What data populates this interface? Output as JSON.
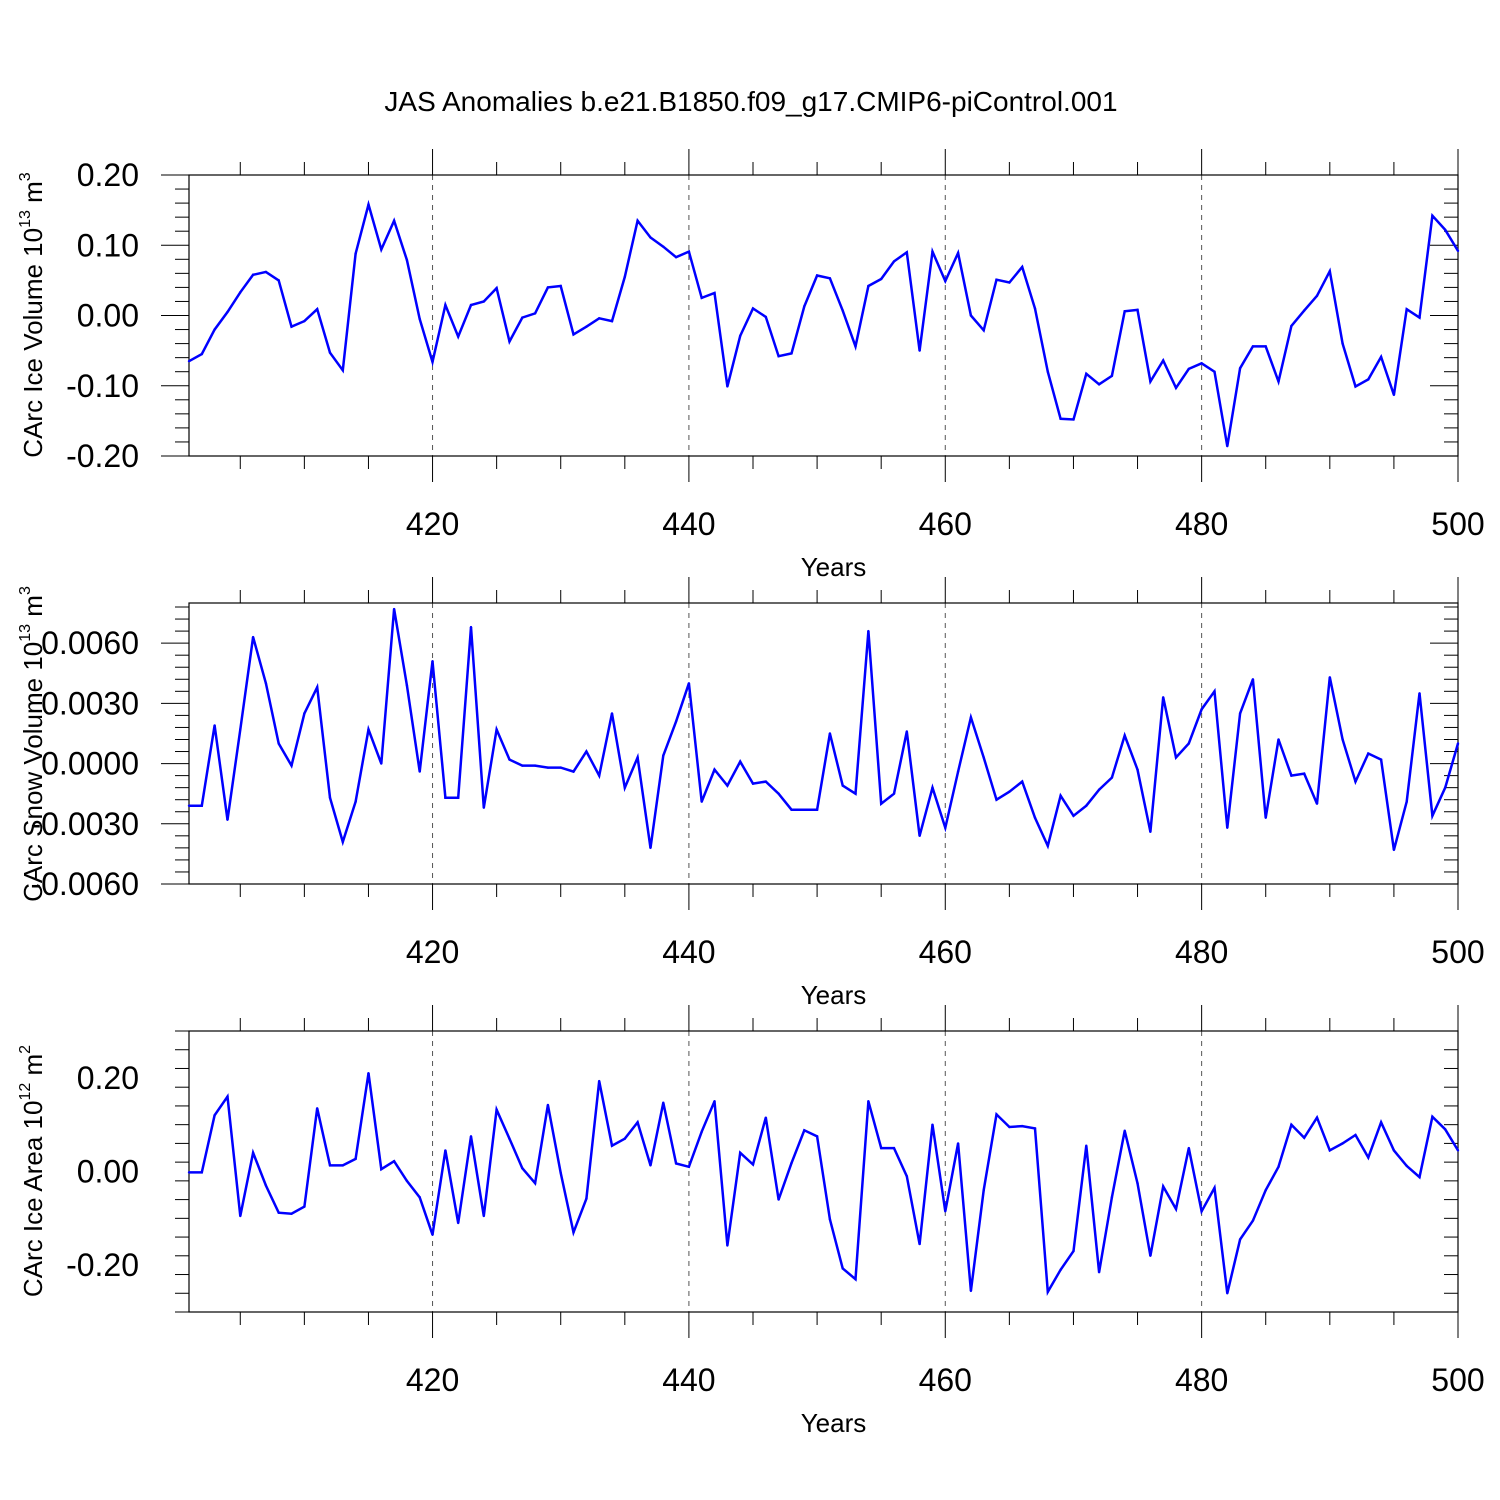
{
  "title": "JAS Anomalies b.e21.B1850.f09_g17.CMIP6-piControl.001",
  "line_color": "#0000ff",
  "chart_data": [
    {
      "type": "line",
      "title": "",
      "xlabel": "Years",
      "ylabel": {
        "base": "CArc Ice Volume 10",
        "exp": "13",
        "unit": " m",
        "unit_exp": "3"
      },
      "xlim": [
        401,
        500
      ],
      "ylim": [
        -0.2,
        0.2
      ],
      "xticks": [
        420,
        440,
        460,
        480,
        500
      ],
      "xtick_labels": [
        "420",
        "440",
        "460",
        "480",
        "500"
      ],
      "yticks": [
        -0.2,
        -0.1,
        0.0,
        0.1,
        0.2
      ],
      "ytick_labels": [
        "-0.20",
        "-0.10",
        "0.00",
        "0.10",
        "0.20"
      ],
      "grid": "vertical-dashed",
      "series": [
        {
          "x": [
            401,
            402,
            403,
            404,
            405,
            406,
            407,
            408,
            409,
            410,
            411,
            412,
            413,
            414,
            415,
            416,
            417,
            418,
            419,
            420,
            421,
            422,
            423,
            424,
            425,
            426,
            427,
            428,
            429,
            430,
            431,
            432,
            433,
            434,
            435,
            436,
            437,
            438,
            439,
            440,
            441,
            442,
            443,
            444,
            445,
            446,
            447,
            448,
            449,
            450,
            451,
            452,
            453,
            454,
            455,
            456,
            457,
            458,
            459,
            460,
            461,
            462,
            463,
            464,
            465,
            466,
            467,
            468,
            469,
            470,
            471,
            472,
            473,
            474,
            475,
            476,
            477,
            478,
            479,
            480,
            481,
            482,
            483,
            484,
            485,
            486,
            487,
            488,
            489,
            490,
            491,
            492,
            493,
            494,
            495,
            496,
            497,
            498,
            499,
            500
          ],
          "values": [
            -0.065,
            -0.055,
            -0.02,
            0.005,
            0.033,
            0.058,
            0.062,
            0.05,
            -0.016,
            -0.008,
            0.009,
            -0.053,
            -0.078,
            0.088,
            0.158,
            0.094,
            0.135,
            0.079,
            -0.005,
            -0.066,
            0.015,
            -0.03,
            0.015,
            0.02,
            0.039,
            -0.037,
            -0.003,
            0.003,
            0.04,
            0.042,
            -0.027,
            -0.016,
            -0.004,
            -0.008,
            0.055,
            0.135,
            0.111,
            0.098,
            0.083,
            0.091,
            0.025,
            0.032,
            -0.101,
            -0.029,
            0.01,
            -0.002,
            -0.058,
            -0.054,
            0.013,
            0.057,
            0.053,
            0.007,
            -0.044,
            0.042,
            0.052,
            0.077,
            0.09,
            -0.05,
            0.091,
            0.049,
            0.089,
            0.0,
            -0.021,
            0.051,
            0.047,
            0.069,
            0.01,
            -0.08,
            -0.147,
            -0.148,
            -0.083,
            -0.098,
            -0.086,
            0.006,
            0.008,
            -0.094,
            -0.064,
            -0.103,
            -0.076,
            -0.068,
            -0.08,
            -0.186,
            -0.075,
            -0.044,
            -0.044,
            -0.094,
            -0.015,
            0.007,
            0.028,
            0.063,
            -0.04,
            -0.101,
            -0.091,
            -0.059,
            -0.113,
            0.009,
            -0.003,
            0.142,
            0.122,
            0.092
          ]
        }
      ]
    },
    {
      "type": "line",
      "title": "",
      "xlabel": "Years",
      "ylabel": {
        "base": "CArc Snow Volume 10",
        "exp": "13",
        "unit": " m",
        "unit_exp": "3"
      },
      "xlim": [
        401,
        500
      ],
      "ylim": [
        -0.006,
        0.008
      ],
      "xticks": [
        420,
        440,
        460,
        480,
        500
      ],
      "xtick_labels": [
        "420",
        "440",
        "460",
        "480",
        "500"
      ],
      "yticks": [
        -0.006,
        -0.003,
        0.0,
        0.003,
        0.006
      ],
      "ytick_labels": [
        "-0.0060",
        "-0.0030",
        "0.0000",
        "0.0030",
        "0.0060"
      ],
      "grid": "vertical-dashed",
      "series": [
        {
          "x": [
            401,
            402,
            403,
            404,
            405,
            406,
            407,
            408,
            409,
            410,
            411,
            412,
            413,
            414,
            415,
            416,
            417,
            418,
            419,
            420,
            421,
            422,
            423,
            424,
            425,
            426,
            427,
            428,
            429,
            430,
            431,
            432,
            433,
            434,
            435,
            436,
            437,
            438,
            439,
            440,
            441,
            442,
            443,
            444,
            445,
            446,
            447,
            448,
            449,
            450,
            451,
            452,
            453,
            454,
            455,
            456,
            457,
            458,
            459,
            460,
            461,
            462,
            463,
            464,
            465,
            466,
            467,
            468,
            469,
            470,
            471,
            472,
            473,
            474,
            475,
            476,
            477,
            478,
            479,
            480,
            481,
            482,
            483,
            484,
            485,
            486,
            487,
            488,
            489,
            490,
            491,
            492,
            493,
            494,
            495,
            496,
            497,
            498,
            499,
            500
          ],
          "values": [
            -0.0021,
            -0.0021,
            0.0019,
            -0.0028,
            0.0017,
            0.0063,
            0.004,
            0.001,
            -0.0001,
            0.0025,
            0.0038,
            -0.0017,
            -0.0039,
            -0.0019,
            0.0017,
            0.0,
            0.0077,
            0.0039,
            -0.0004,
            0.0051,
            -0.0017,
            -0.0017,
            0.0068,
            -0.0022,
            0.0017,
            0.0002,
            -0.0001,
            -0.0001,
            -0.0002,
            -0.0002,
            -0.0004,
            0.0006,
            -0.0006,
            0.0025,
            -0.0012,
            0.0003,
            -0.0042,
            0.0004,
            0.0021,
            0.004,
            -0.0019,
            -0.0003,
            -0.0011,
            0.0001,
            -0.001,
            -0.0009,
            -0.0015,
            -0.0023,
            -0.0023,
            -0.0023,
            0.0015,
            -0.0011,
            -0.0015,
            0.0066,
            -0.002,
            -0.0015,
            0.0016,
            -0.0036,
            -0.0012,
            -0.0032,
            -0.0004,
            0.0023,
            0.0003,
            -0.0018,
            -0.0014,
            -0.0009,
            -0.0027,
            -0.0041,
            -0.0016,
            -0.0026,
            -0.0021,
            -0.0013,
            -0.0007,
            0.0014,
            -0.0003,
            -0.0034,
            0.0033,
            0.0003,
            0.001,
            0.0027,
            0.0036,
            -0.0032,
            0.0025,
            0.0042,
            -0.0027,
            0.0012,
            -0.0006,
            -0.0005,
            -0.002,
            0.0043,
            0.0012,
            -0.0009,
            0.0005,
            0.0002,
            -0.0043,
            -0.0019,
            0.0035,
            -0.0026,
            -0.0012,
            0.001
          ]
        }
      ]
    },
    {
      "type": "line",
      "title": "",
      "xlabel": "Years",
      "ylabel": {
        "base": "CArc Ice Area 10",
        "exp": "12",
        "unit": " m",
        "unit_exp": "2"
      },
      "xlim": [
        401,
        500
      ],
      "ylim": [
        -0.3,
        0.3
      ],
      "xticks": [
        420,
        440,
        460,
        480,
        500
      ],
      "xtick_labels": [
        "420",
        "440",
        "460",
        "480",
        "500"
      ],
      "yticks": [
        -0.2,
        0.0,
        0.2
      ],
      "ytick_labels": [
        "-0.20",
        "0.00",
        "0.20"
      ],
      "grid": "vertical-dashed",
      "series": [
        {
          "x": [
            401,
            402,
            403,
            404,
            405,
            406,
            407,
            408,
            409,
            410,
            411,
            412,
            413,
            414,
            415,
            416,
            417,
            418,
            419,
            420,
            421,
            422,
            423,
            424,
            425,
            426,
            427,
            428,
            429,
            430,
            431,
            432,
            433,
            434,
            435,
            436,
            437,
            438,
            439,
            440,
            441,
            442,
            443,
            444,
            445,
            446,
            447,
            448,
            449,
            450,
            451,
            452,
            453,
            454,
            455,
            456,
            457,
            458,
            459,
            460,
            461,
            462,
            463,
            464,
            465,
            466,
            467,
            468,
            469,
            470,
            471,
            472,
            473,
            474,
            475,
            476,
            477,
            478,
            479,
            480,
            481,
            482,
            483,
            484,
            485,
            486,
            487,
            488,
            489,
            490,
            491,
            492,
            493,
            494,
            495,
            496,
            497,
            498,
            499,
            500
          ],
          "values": [
            -0.002,
            -0.002,
            0.12,
            0.16,
            -0.095,
            0.04,
            -0.03,
            -0.088,
            -0.09,
            -0.075,
            0.135,
            0.013,
            0.013,
            0.027,
            0.21,
            0.005,
            0.022,
            -0.02,
            -0.055,
            -0.135,
            0.045,
            -0.11,
            0.075,
            -0.095,
            0.132,
            0.07,
            0.007,
            -0.025,
            0.142,
            -0.003,
            -0.13,
            -0.058,
            0.193,
            0.055,
            0.07,
            0.105,
            0.013,
            0.147,
            0.017,
            0.01,
            0.085,
            0.15,
            -0.158,
            0.04,
            0.015,
            0.115,
            -0.06,
            0.018,
            0.088,
            0.075,
            -0.102,
            -0.207,
            -0.23,
            0.15,
            0.05,
            0.05,
            -0.01,
            -0.155,
            0.1,
            -0.085,
            0.06,
            -0.255,
            -0.04,
            0.122,
            0.095,
            0.097,
            0.092,
            -0.257,
            -0.21,
            -0.17,
            0.055,
            -0.215,
            -0.055,
            0.087,
            -0.025,
            -0.18,
            -0.032,
            -0.08,
            0.05,
            -0.085,
            -0.035,
            -0.26,
            -0.145,
            -0.105,
            -0.04,
            0.01,
            0.1,
            0.072,
            0.115,
            0.045,
            0.06,
            0.078,
            0.03,
            0.105,
            0.045,
            0.012,
            -0.012,
            0.117,
            0.09,
            0.045
          ]
        }
      ]
    }
  ]
}
